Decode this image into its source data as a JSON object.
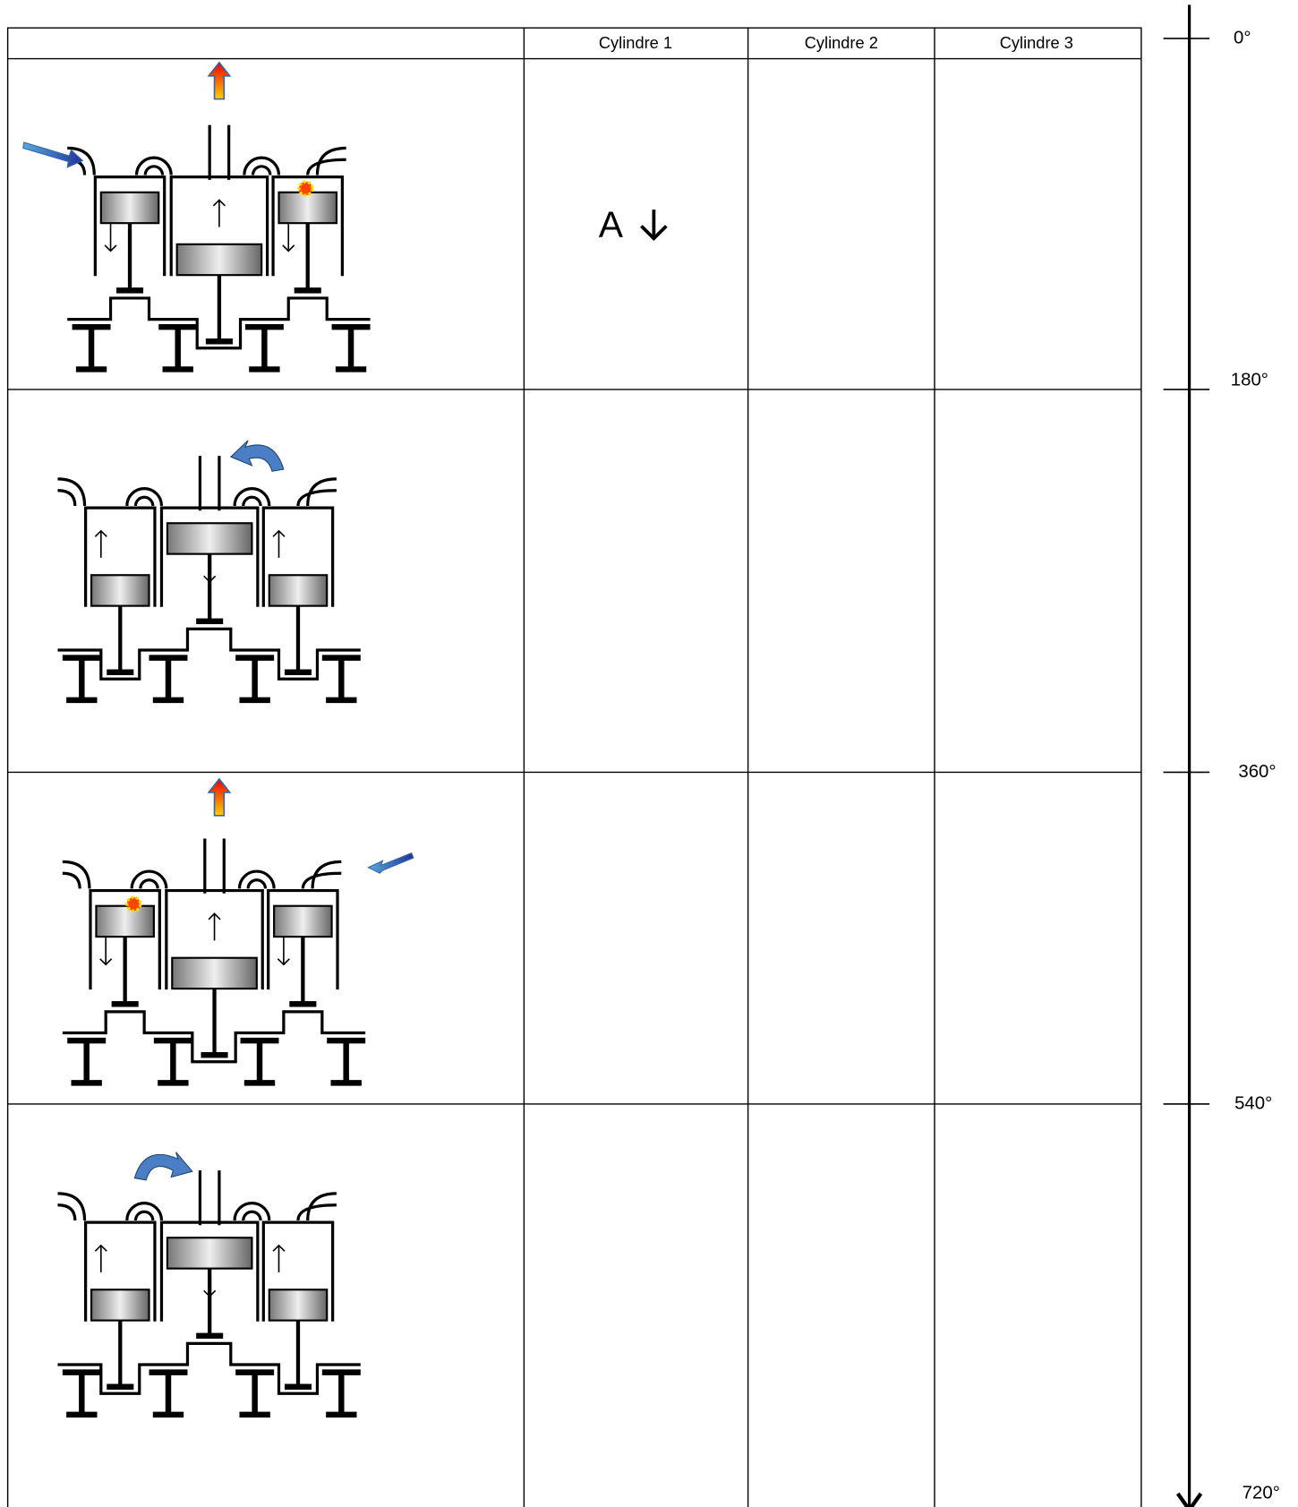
{
  "table": {
    "columns": [
      "Cylindre 1",
      "Cylindre 2",
      "Cylindre 3"
    ],
    "rows": [
      [
        "A",
        "",
        ""
      ]
    ]
  },
  "axis": {
    "labels": [
      "0°",
      "180°",
      "360°",
      "540°",
      "720°"
    ]
  }
}
